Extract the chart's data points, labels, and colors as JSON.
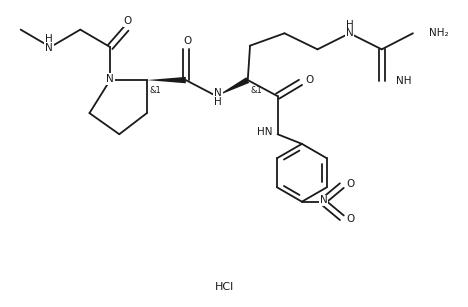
{
  "bg": "#ffffff",
  "lc": "#1a1a1a",
  "lw": 1.3,
  "fs": 7.5,
  "fs_small": 6.0,
  "xlim": [
    0,
    10
  ],
  "ylim": [
    0,
    6.6
  ],
  "figsize": [
    4.68,
    3.07
  ],
  "dpi": 100,
  "hcl": "HCl",
  "hcl_x": 4.8,
  "hcl_y": 0.38
}
